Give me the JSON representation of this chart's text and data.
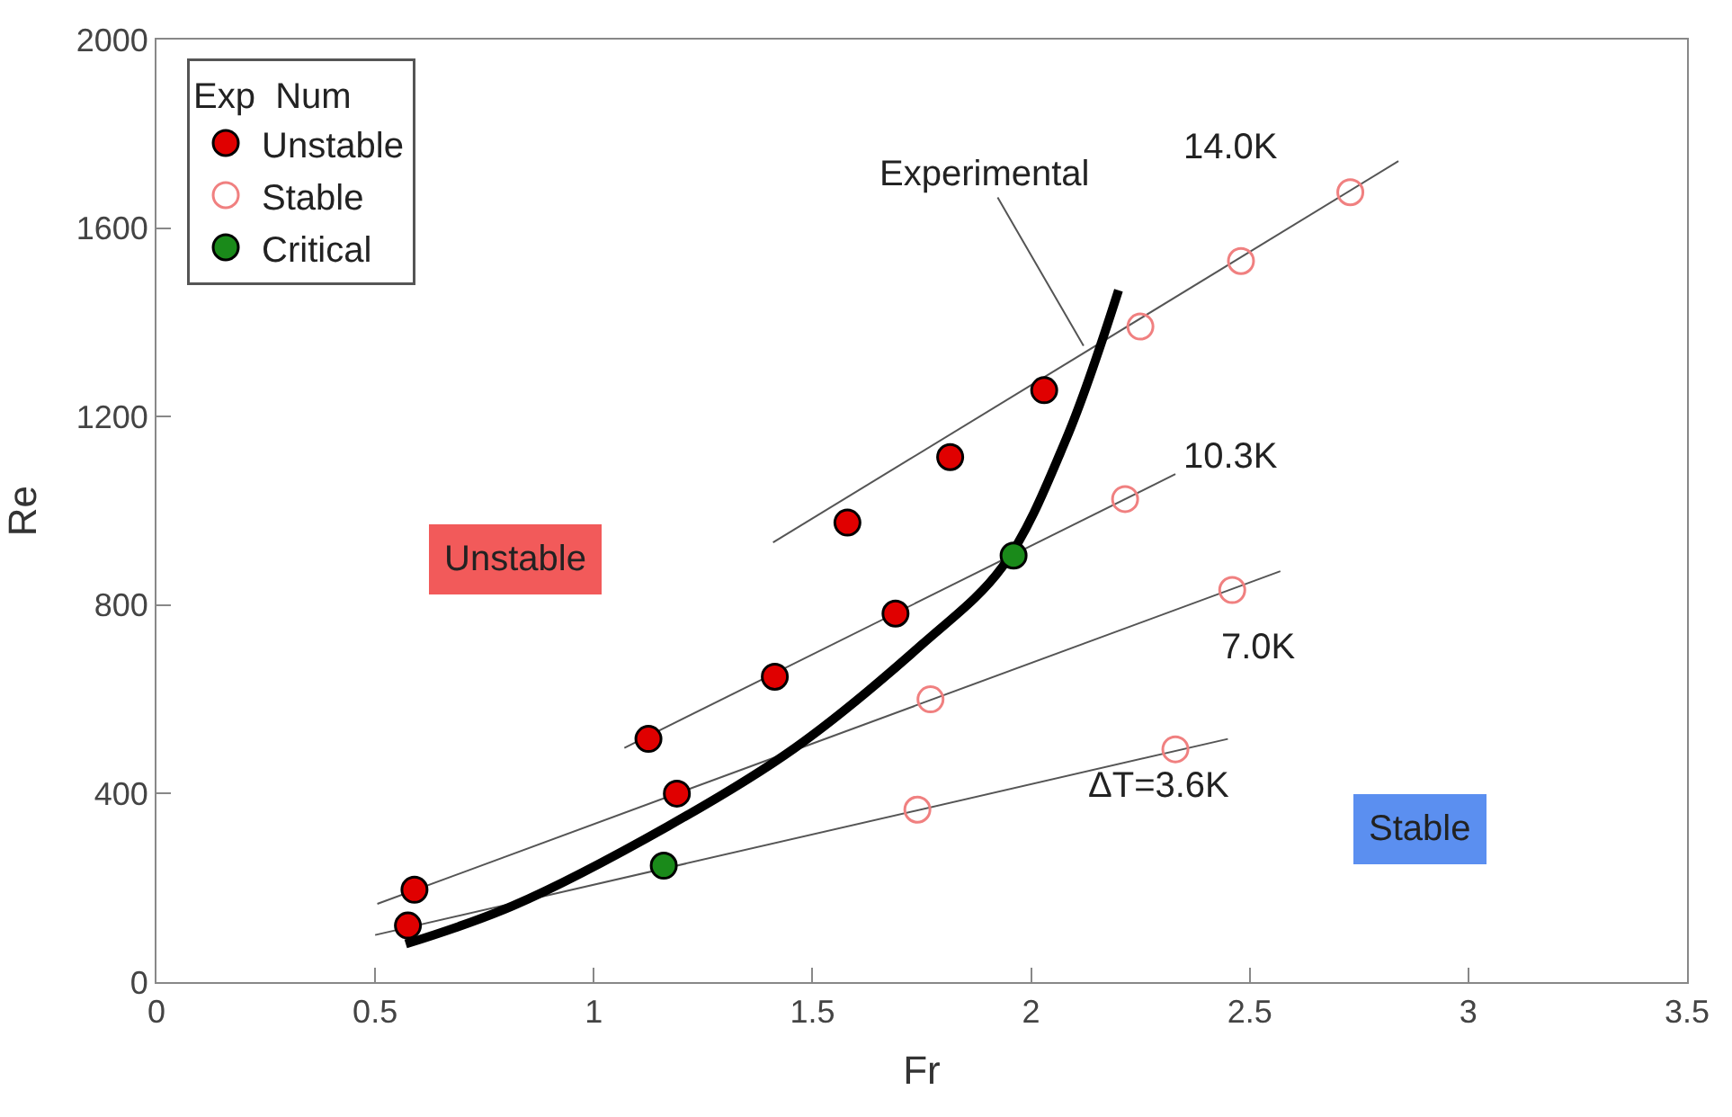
{
  "chart_data": {
    "type": "scatter",
    "xlabel": "Fr",
    "ylabel": "Re",
    "legend_title": "Exp  Num",
    "legend": "top left",
    "marker": "circle",
    "xlim": [
      0,
      3.5
    ],
    "xticks": [
      0,
      0.5,
      1,
      1.5,
      2,
      2.5,
      3,
      3.5
    ],
    "ylim": [
      0,
      2000
    ],
    "yticks": [
      0,
      400,
      800,
      1200,
      1600,
      2000
    ],
    "series": [
      {
        "type": "line",
        "marker": "none",
        "color": "#555555",
        "x": [
          1.41,
          2.84
        ],
        "values": [
          933,
          1742
        ]
      },
      {
        "type": "line",
        "marker": "none",
        "color": "#555555",
        "x": [
          1.07,
          2.33
        ],
        "values": [
          497,
          1078
        ]
      },
      {
        "type": "line",
        "marker": "none",
        "color": "#555555",
        "x": [
          0.505,
          2.57
        ],
        "values": [
          166,
          872
        ]
      },
      {
        "type": "line",
        "marker": "none",
        "color": "#555555",
        "x": [
          0.5,
          2.45
        ],
        "values": [
          100,
          516
        ]
      },
      {
        "type": "line",
        "marker": "none",
        "color": "#000000",
        "x": [
          0.57,
          0.815,
          1.17,
          1.46,
          1.75,
          1.935,
          2.08,
          2.2
        ],
        "values": [
          81,
          162,
          331,
          497,
          716,
          882,
          1152,
          1468
        ]
      },
      {
        "name": "Unstable",
        "color": "#e00000",
        "x": [
          1.58,
          1.815,
          2.03,
          1.125,
          1.414,
          1.69,
          0.59,
          1.19,
          0.575
        ],
        "values": [
          975,
          1114,
          1256,
          516,
          648,
          782,
          196,
          400,
          120
        ]
      },
      {
        "name": "Stable",
        "color": "#f08080",
        "x": [
          2.25,
          2.48,
          2.73,
          2.215,
          1.77,
          2.46,
          1.74,
          2.33
        ],
        "values": [
          1391,
          1530,
          1676,
          1025,
          600,
          832,
          366,
          494
        ]
      },
      {
        "name": "Critical",
        "color": "#1a8a1a",
        "x": [
          1.96,
          1.16
        ],
        "values": [
          905,
          247
        ]
      }
    ],
    "annotations": [
      {
        "text": "Experimental",
        "x": 2.12,
        "y": 1350
      },
      "14.0K",
      "10.3K",
      "7.0K",
      "ΔT=3.6K",
      "Unstable",
      "Stable"
    ]
  }
}
